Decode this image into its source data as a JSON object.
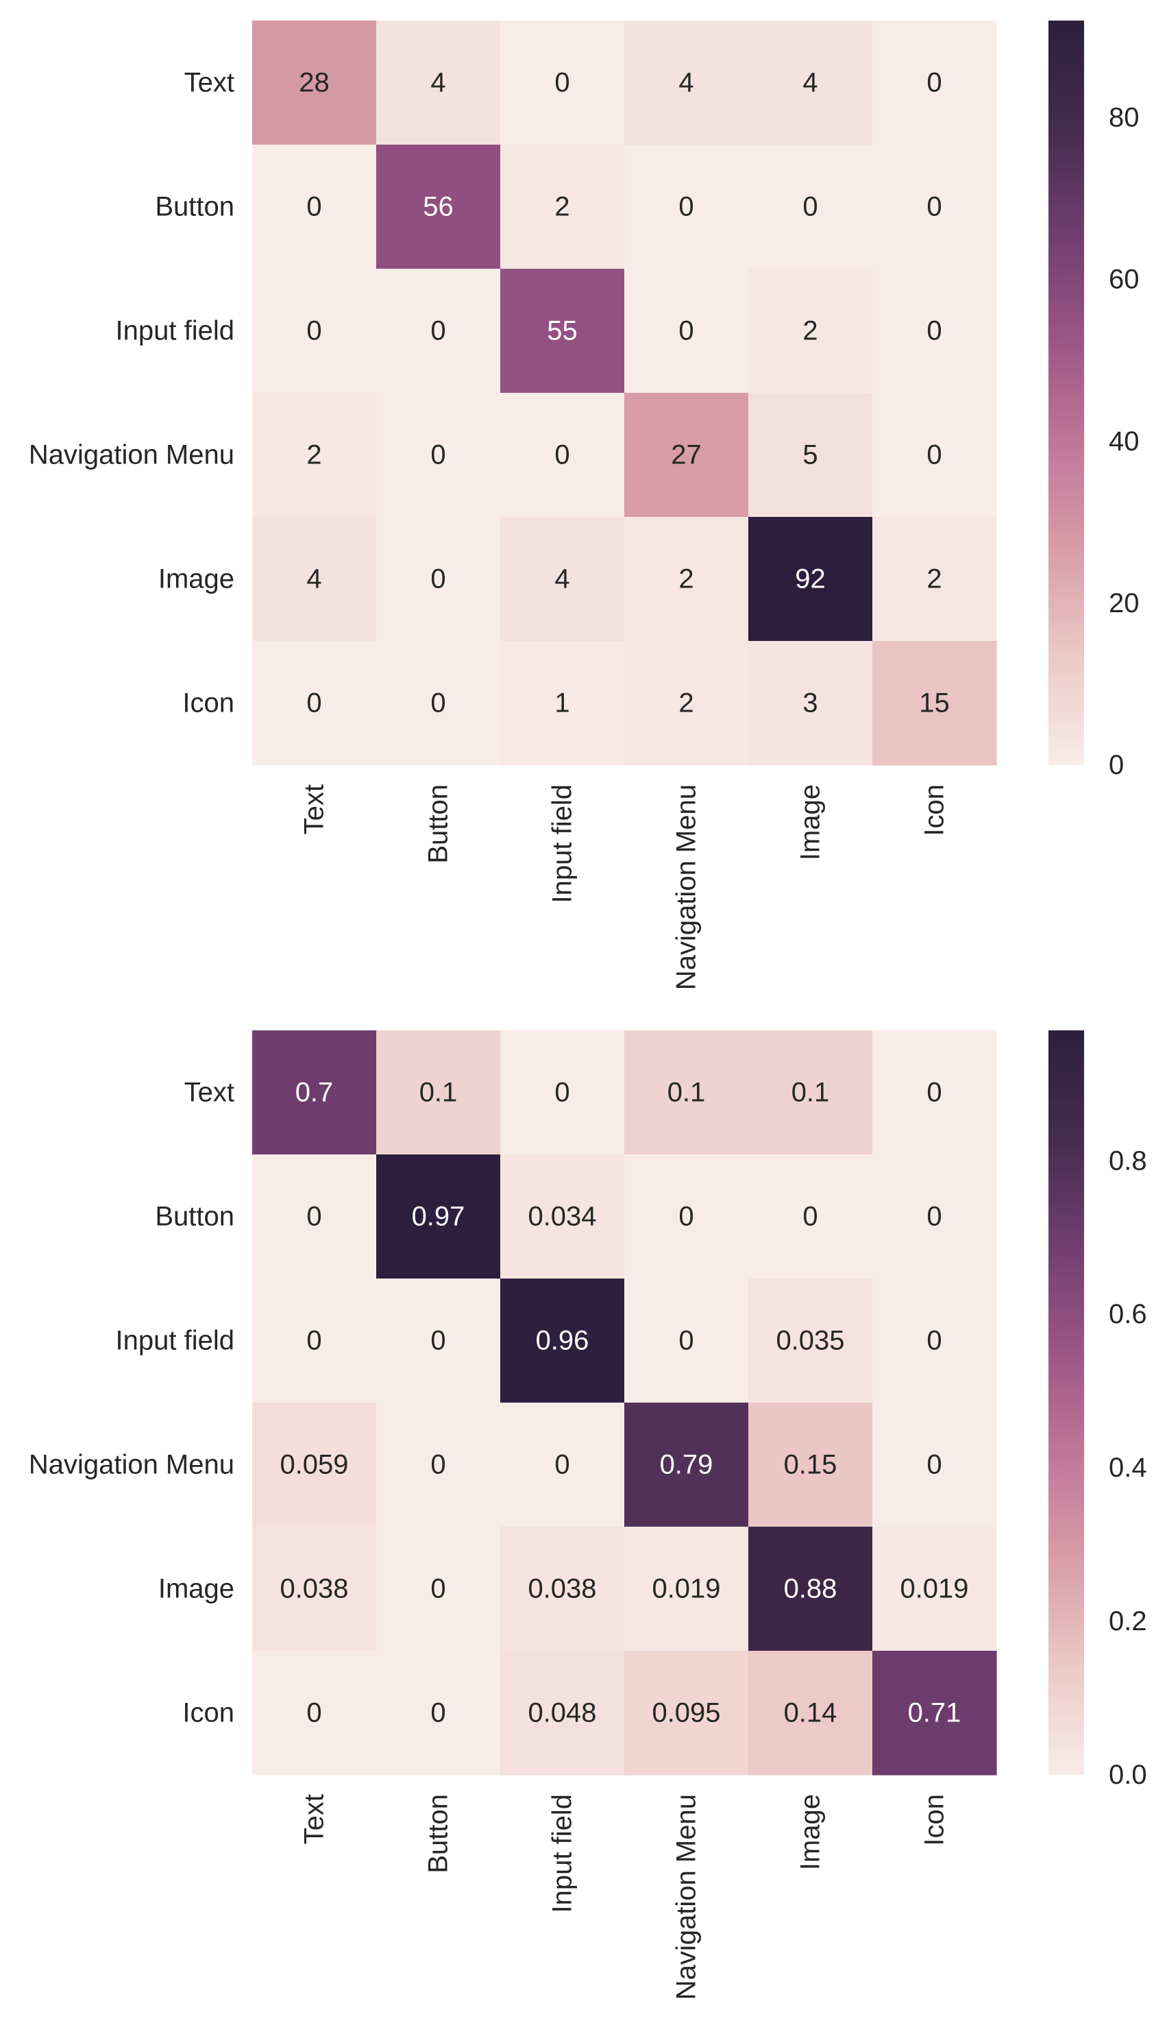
{
  "chart_data": [
    {
      "type": "heatmap",
      "rows": [
        "Text",
        "Button",
        "Input field",
        "Navigation Menu",
        "Image",
        "Icon"
      ],
      "columns": [
        "Text",
        "Button",
        "Input field",
        "Navigation Menu",
        "Image",
        "Icon"
      ],
      "values": [
        [
          28,
          4,
          0,
          4,
          4,
          0
        ],
        [
          0,
          56,
          2,
          0,
          0,
          0
        ],
        [
          0,
          0,
          55,
          0,
          2,
          0
        ],
        [
          2,
          0,
          0,
          27,
          5,
          0
        ],
        [
          4,
          0,
          4,
          2,
          92,
          2
        ],
        [
          0,
          0,
          1,
          2,
          3,
          15
        ]
      ],
      "cell_labels": [
        [
          "28",
          "4",
          "0",
          "4",
          "4",
          "0"
        ],
        [
          "0",
          "56",
          "2",
          "0",
          "0",
          "0"
        ],
        [
          "0",
          "0",
          "55",
          "0",
          "2",
          "0"
        ],
        [
          "2",
          "0",
          "0",
          "27",
          "5",
          "0"
        ],
        [
          "4",
          "0",
          "4",
          "2",
          "92",
          "2"
        ],
        [
          "0",
          "0",
          "1",
          "2",
          "3",
          "15"
        ]
      ],
      "colorbar": {
        "vmin": 0,
        "vmax": 92,
        "ticks": [
          0,
          20,
          40,
          60,
          80
        ],
        "tick_labels": [
          "0",
          "20",
          "40",
          "60",
          "80"
        ]
      }
    },
    {
      "type": "heatmap",
      "rows": [
        "Text",
        "Button",
        "Input field",
        "Navigation Menu",
        "Image",
        "Icon"
      ],
      "columns": [
        "Text",
        "Button",
        "Input field",
        "Navigation Menu",
        "Image",
        "Icon"
      ],
      "values": [
        [
          0.7,
          0.1,
          0,
          0.1,
          0.1,
          0
        ],
        [
          0,
          0.97,
          0.034,
          0,
          0,
          0
        ],
        [
          0,
          0,
          0.96,
          0,
          0.035,
          0
        ],
        [
          0.059,
          0,
          0,
          0.79,
          0.15,
          0
        ],
        [
          0.038,
          0,
          0.038,
          0.019,
          0.88,
          0.019
        ],
        [
          0,
          0,
          0.048,
          0.095,
          0.14,
          0.71
        ]
      ],
      "cell_labels": [
        [
          "0.7",
          "0.1",
          "0",
          "0.1",
          "0.1",
          "0"
        ],
        [
          "0",
          "0.97",
          "0.034",
          "0",
          "0",
          "0"
        ],
        [
          "0",
          "0",
          "0.96",
          "0",
          "0.035",
          "0"
        ],
        [
          "0.059",
          "0",
          "0",
          "0.79",
          "0.15",
          "0"
        ],
        [
          "0.038",
          "0",
          "0.038",
          "0.019",
          "0.88",
          "0.019"
        ],
        [
          "0",
          "0",
          "0.048",
          "0.095",
          "0.14",
          "0.71"
        ]
      ],
      "colorbar": {
        "vmin": 0,
        "vmax": 0.97,
        "ticks": [
          0,
          0.2,
          0.4,
          0.6,
          0.8
        ],
        "tick_labels": [
          "0.0",
          "0.2",
          "0.4",
          "0.6",
          "0.8"
        ]
      }
    }
  ],
  "colors": {
    "cmap_stops": [
      "#f8ece8",
      "#eccac7",
      "#d89ea8",
      "#c1779a",
      "#9b5586",
      "#703e70",
      "#452b4e",
      "#2d1e3e"
    ],
    "label_dark": "#262626",
    "label_light": "#ffffff"
  }
}
